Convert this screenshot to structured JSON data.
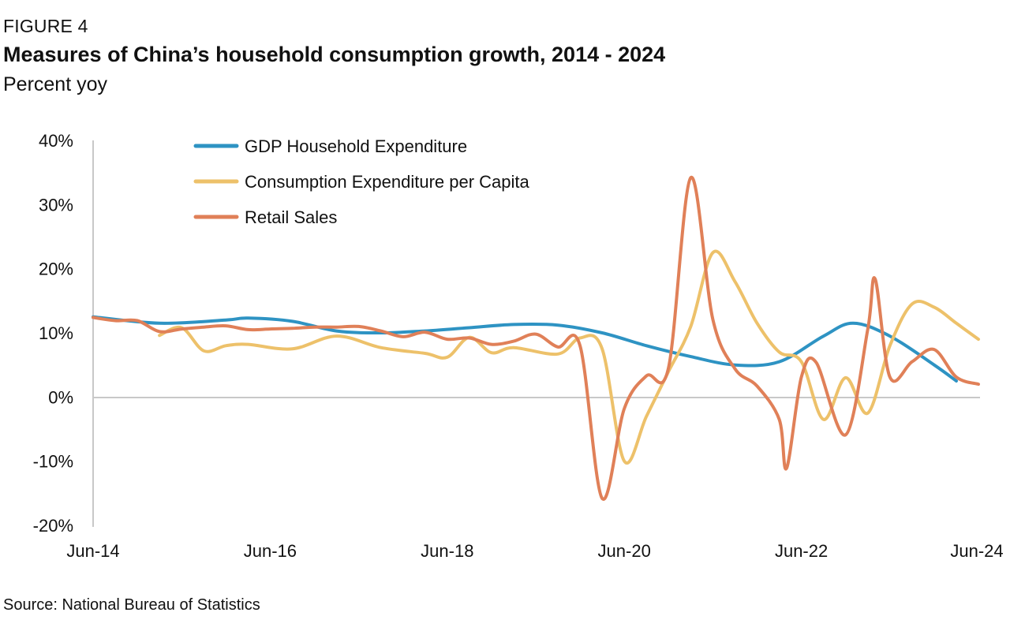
{
  "figure_label": "FIGURE 4",
  "title": "Measures of China’s household consumption growth, 2014 - 2024",
  "subtitle": "Percent yoy",
  "source": "Source: National Bureau of Statistics",
  "chart_data": {
    "type": "line",
    "ylim": [
      -20,
      40
    ],
    "yticks": [
      -20,
      -10,
      0,
      10,
      20,
      30,
      40
    ],
    "ytick_labels": [
      "-20%",
      "-10%",
      "0%",
      "10%",
      "20%",
      "30%",
      "40%"
    ],
    "xlim": [
      "2014-06",
      "2024-06"
    ],
    "xtick_labels": [
      "Jun-14",
      "Jun-16",
      "Jun-18",
      "Jun-20",
      "Jun-22",
      "Jun-24"
    ],
    "xticks": [
      "2014-06",
      "2016-06",
      "2018-06",
      "2020-06",
      "2022-06",
      "2024-06"
    ],
    "legend_position": "top-left",
    "grid": false,
    "series": [
      {
        "name": "GDP Household Expenditure",
        "color": "#2E93C3",
        "points": [
          [
            "2014-06",
            12.5
          ],
          [
            "2015-03",
            11.5
          ],
          [
            "2015-12",
            12.0
          ],
          [
            "2016-03",
            12.3
          ],
          [
            "2016-09",
            11.8
          ],
          [
            "2017-03",
            10.3
          ],
          [
            "2017-09",
            10.0
          ],
          [
            "2018-03",
            10.3
          ],
          [
            "2018-09",
            10.8
          ],
          [
            "2019-03",
            11.3
          ],
          [
            "2019-09",
            11.2
          ],
          [
            "2020-03",
            10.0
          ],
          [
            "2020-09",
            8.0
          ],
          [
            "2021-03",
            6.3
          ],
          [
            "2021-09",
            5.0
          ],
          [
            "2022-03",
            5.5
          ],
          [
            "2022-09",
            9.5
          ],
          [
            "2023-01",
            11.5
          ],
          [
            "2023-06",
            9.5
          ],
          [
            "2023-12",
            5.0
          ],
          [
            "2024-03",
            2.5
          ]
        ]
      },
      {
        "name": "Consumption Expenditure per Capita",
        "color": "#EDC16A",
        "points": [
          [
            "2015-03",
            9.6
          ],
          [
            "2015-06",
            10.8
          ],
          [
            "2015-09",
            7.2
          ],
          [
            "2015-12",
            8.0
          ],
          [
            "2016-03",
            8.2
          ],
          [
            "2016-09",
            7.5
          ],
          [
            "2017-03",
            9.5
          ],
          [
            "2017-09",
            7.7
          ],
          [
            "2018-03",
            6.8
          ],
          [
            "2018-06",
            6.2
          ],
          [
            "2018-09",
            9.3
          ],
          [
            "2018-12",
            6.9
          ],
          [
            "2019-03",
            7.7
          ],
          [
            "2019-09",
            6.7
          ],
          [
            "2019-12",
            9.2
          ],
          [
            "2020-03",
            7.5
          ],
          [
            "2020-06",
            -10.0
          ],
          [
            "2020-09",
            -3.0
          ],
          [
            "2020-12",
            4.0
          ],
          [
            "2021-03",
            11.0
          ],
          [
            "2021-06",
            22.5
          ],
          [
            "2021-09",
            18.0
          ],
          [
            "2021-12",
            11.5
          ],
          [
            "2022-03",
            7.0
          ],
          [
            "2022-06",
            5.5
          ],
          [
            "2022-09",
            -3.5
          ],
          [
            "2022-12",
            3.0
          ],
          [
            "2023-03",
            -2.5
          ],
          [
            "2023-06",
            8.0
          ],
          [
            "2023-09",
            14.5
          ],
          [
            "2023-12",
            14.0
          ],
          [
            "2024-03",
            11.5
          ],
          [
            "2024-06",
            9.0
          ]
        ]
      },
      {
        "name": "Retail Sales",
        "color": "#E08058",
        "points": [
          [
            "2014-06",
            12.4
          ],
          [
            "2014-09",
            11.9
          ],
          [
            "2014-12",
            11.9
          ],
          [
            "2015-03",
            10.2
          ],
          [
            "2015-06",
            10.6
          ],
          [
            "2015-09",
            10.9
          ],
          [
            "2015-12",
            11.1
          ],
          [
            "2016-03",
            10.5
          ],
          [
            "2016-06",
            10.6
          ],
          [
            "2016-09",
            10.7
          ],
          [
            "2016-12",
            10.9
          ],
          [
            "2017-03",
            10.9
          ],
          [
            "2017-06",
            11.0
          ],
          [
            "2017-09",
            10.3
          ],
          [
            "2017-12",
            9.4
          ],
          [
            "2018-03",
            10.1
          ],
          [
            "2018-06",
            9.0
          ],
          [
            "2018-09",
            9.2
          ],
          [
            "2018-12",
            8.2
          ],
          [
            "2019-03",
            8.7
          ],
          [
            "2019-06",
            9.8
          ],
          [
            "2019-09",
            7.8
          ],
          [
            "2019-12",
            8.0
          ],
          [
            "2020-03",
            -15.8
          ],
          [
            "2020-06",
            -1.8
          ],
          [
            "2020-09",
            3.3
          ],
          [
            "2020-12",
            4.6
          ],
          [
            "2021-03",
            34.2
          ],
          [
            "2021-06",
            12.1
          ],
          [
            "2021-09",
            4.4
          ],
          [
            "2021-12",
            1.7
          ],
          [
            "2022-03",
            -3.5
          ],
          [
            "2022-04",
            -11.1
          ],
          [
            "2022-06",
            3.1
          ],
          [
            "2022-08",
            5.4
          ],
          [
            "2022-12",
            -5.9
          ],
          [
            "2023-03",
            10.6
          ],
          [
            "2023-04",
            18.4
          ],
          [
            "2023-06",
            3.1
          ],
          [
            "2023-09",
            5.5
          ],
          [
            "2023-12",
            7.4
          ],
          [
            "2024-03",
            3.1
          ],
          [
            "2024-06",
            2.0
          ]
        ]
      }
    ]
  }
}
